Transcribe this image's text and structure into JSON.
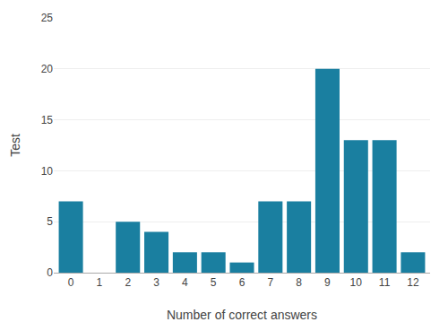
{
  "chart_data": {
    "type": "bar",
    "x": [
      0,
      1,
      2,
      3,
      4,
      5,
      6,
      7,
      8,
      9,
      10,
      11,
      12
    ],
    "values": [
      7,
      0,
      5,
      4,
      2,
      2,
      1,
      7,
      7,
      20,
      13,
      13,
      2
    ],
    "color": "#1a7fa0",
    "xlabel": "Number of correct answers",
    "ylabel": "Test",
    "xlim": [
      -0.6,
      12.6
    ],
    "xticks": [
      0,
      1,
      2,
      3,
      4,
      5,
      6,
      7,
      8,
      9,
      10,
      11,
      12
    ],
    "ylim": [
      0,
      25
    ],
    "yticks": [
      0,
      5,
      10,
      15,
      20,
      25
    ],
    "grid": true
  }
}
